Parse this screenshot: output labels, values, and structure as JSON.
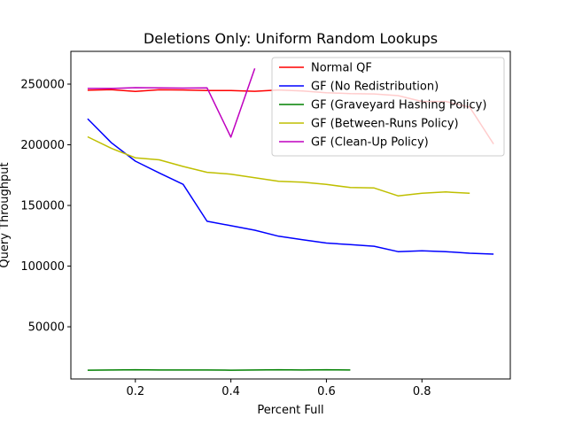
{
  "chart_data": {
    "type": "line",
    "title": "Deletions Only: Uniform Random Lookups",
    "xlabel": "Percent Full",
    "ylabel": "Query Throughput",
    "xlim": [
      0.065,
      0.985
    ],
    "ylim": [
      7000,
      277000
    ],
    "xticks": [
      0.2,
      0.4,
      0.6,
      0.8
    ],
    "xtick_labels": [
      "0.2",
      "0.4",
      "0.6",
      "0.8"
    ],
    "yticks": [
      50000,
      100000,
      150000,
      200000,
      250000
    ],
    "ytick_labels": [
      "50000",
      "100000",
      "150000",
      "200000",
      "250000"
    ],
    "grid": false,
    "legend_position": "upper-right",
    "series": [
      {
        "name": "Normal QF",
        "color": "#ff0000",
        "x": [
          0.1,
          0.15,
          0.2,
          0.25,
          0.3,
          0.35,
          0.4,
          0.45,
          0.5,
          0.55,
          0.6,
          0.65,
          0.7,
          0.75,
          0.8,
          0.85,
          0.9,
          0.95
        ],
        "y": [
          245000,
          245400,
          244000,
          245300,
          245200,
          244700,
          244700,
          244100,
          245200,
          244400,
          242900,
          242200,
          241900,
          240500,
          235700,
          235700,
          231000,
          200700
        ]
      },
      {
        "name": "GF (No Redistribution)",
        "color": "#0000ff",
        "x": [
          0.1,
          0.15,
          0.2,
          0.25,
          0.3,
          0.35,
          0.4,
          0.45,
          0.5,
          0.55,
          0.6,
          0.65,
          0.7,
          0.75,
          0.8,
          0.85,
          0.9,
          0.95
        ],
        "y": [
          221500,
          201600,
          186500,
          176800,
          167400,
          137000,
          133300,
          129600,
          124600,
          121800,
          119000,
          117700,
          116400,
          111900,
          112600,
          111900,
          110600,
          109900
        ]
      },
      {
        "name": "GF (Graveyard Hashing Policy)",
        "color": "#008000",
        "x": [
          0.1,
          0.15,
          0.2,
          0.25,
          0.3,
          0.35,
          0.4,
          0.45,
          0.5,
          0.55,
          0.6,
          0.65
        ],
        "y": [
          14200,
          14400,
          14600,
          14400,
          14400,
          14400,
          14200,
          14400,
          14600,
          14400,
          14600,
          14400
        ]
      },
      {
        "name": "GF (Between-Runs Policy)",
        "color": "#bfbf00",
        "x": [
          0.1,
          0.15,
          0.2,
          0.25,
          0.3,
          0.35,
          0.4,
          0.45,
          0.5,
          0.55,
          0.6,
          0.65,
          0.7,
          0.75,
          0.8,
          0.85,
          0.9
        ],
        "y": [
          206600,
          197000,
          189300,
          187600,
          182100,
          177300,
          175800,
          172800,
          169900,
          169200,
          167300,
          164800,
          164400,
          157900,
          160000,
          161100,
          160000
        ]
      },
      {
        "name": "GF (Clean-Up Policy)",
        "color": "#bf00bf",
        "x": [
          0.1,
          0.15,
          0.2,
          0.25,
          0.3,
          0.35,
          0.4,
          0.45
        ],
        "y": [
          246400,
          246400,
          247100,
          246900,
          246700,
          246900,
          206300,
          262900
        ]
      }
    ]
  }
}
